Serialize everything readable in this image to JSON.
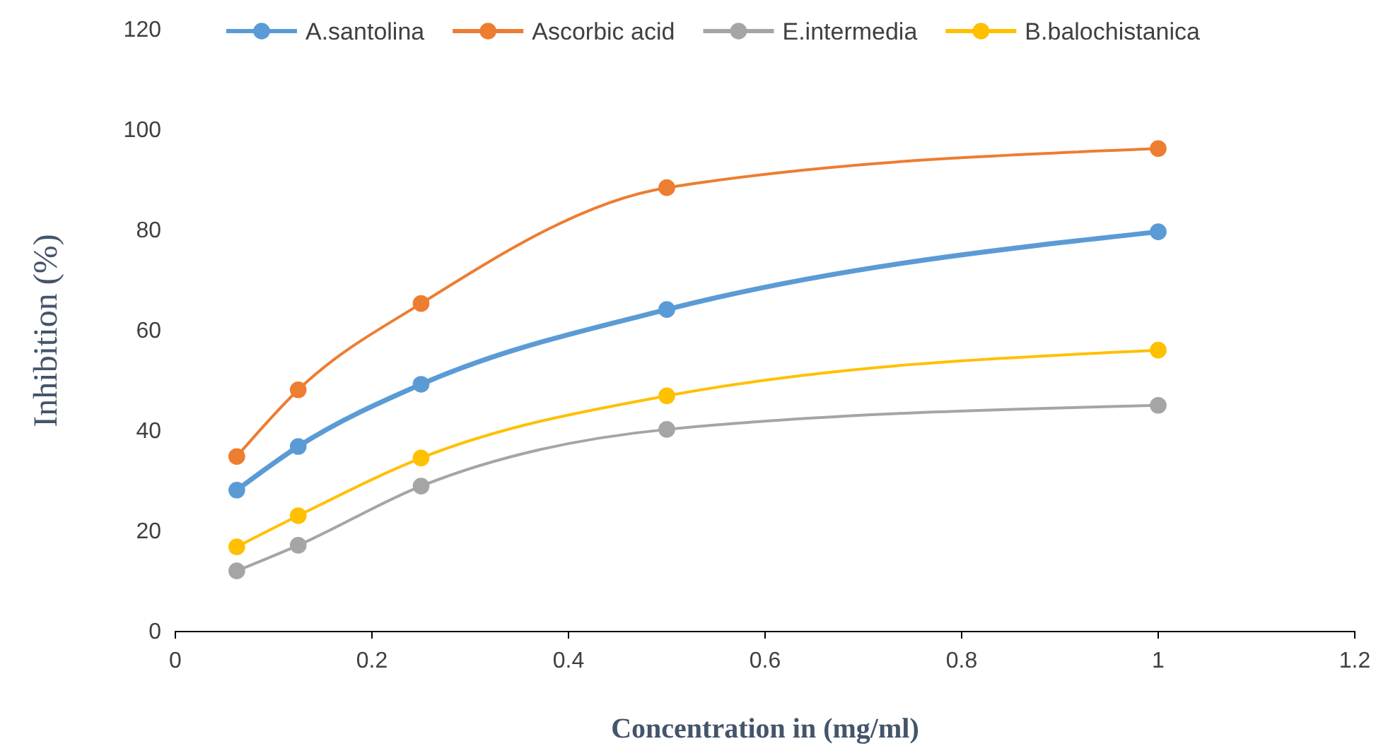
{
  "chart_data": {
    "type": "line",
    "xlabel": "Concentration in  (mg/ml)",
    "ylabel": "Inhibition (%)",
    "x": [
      0.0625,
      0.125,
      0.25,
      0.5,
      1
    ],
    "series": [
      {
        "name": "A.santolina",
        "color": "#5b9bd5",
        "values": [
          28.2,
          36.9,
          49.3,
          64.2,
          79.7
        ]
      },
      {
        "name": "Ascorbic acid",
        "color": "#ed7d31",
        "values": [
          34.9,
          48.2,
          65.4,
          88.5,
          96.3
        ]
      },
      {
        "name": "E.intermedia",
        "color": "#a5a5a5",
        "values": [
          12.1,
          17.2,
          29.0,
          40.3,
          45.1
        ]
      },
      {
        "name": "B.balochistanica",
        "color": "#ffc000",
        "values": [
          16.9,
          23.1,
          34.6,
          47.0,
          56.1
        ]
      }
    ],
    "xlim": [
      0,
      1.2
    ],
    "xticks": [
      0,
      0.2,
      0.4,
      0.6,
      0.8,
      1,
      1.2
    ],
    "ylim": [
      0,
      120
    ],
    "yticks": [
      0,
      20,
      40,
      60,
      80,
      100,
      120
    ],
    "grid": false,
    "legend": "top",
    "marker": "circle",
    "line_style": "solid"
  }
}
